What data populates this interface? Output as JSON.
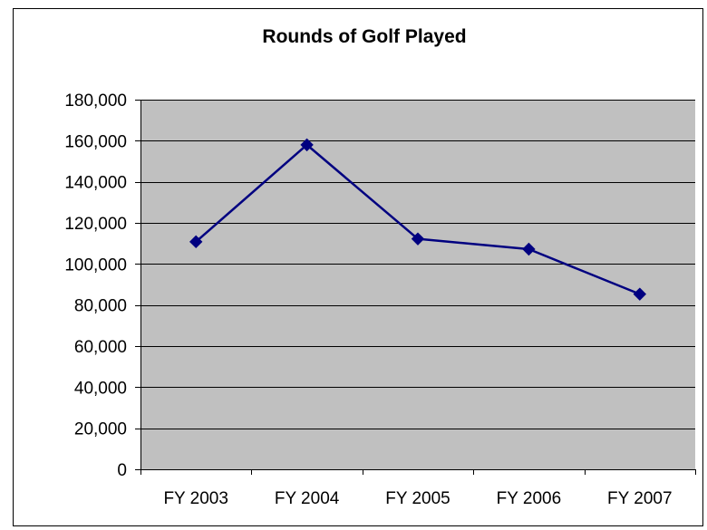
{
  "chart_data": {
    "type": "line",
    "title": "Rounds of Golf Played",
    "xlabel": "",
    "ylabel": "",
    "categories": [
      "FY 2003",
      "FY 2004",
      "FY 2005",
      "FY 2006",
      "FY 2007"
    ],
    "series": [
      {
        "values": [
          110800,
          158000,
          112200,
          107200,
          85300
        ]
      }
    ],
    "ylim": [
      0,
      180000
    ],
    "yticks": [
      0,
      20000,
      40000,
      60000,
      80000,
      100000,
      120000,
      140000,
      160000,
      180000
    ],
    "ytick_labels": [
      "0",
      "20,000",
      "40,000",
      "60,000",
      "80,000",
      "100,000",
      "120,000",
      "140,000",
      "160,000",
      "180,000"
    ],
    "grid": true,
    "legend": "none",
    "colors": {
      "plot_background": "#c0c0c0",
      "line": "#000080",
      "marker": "#000080",
      "gridline": "#000000"
    }
  }
}
